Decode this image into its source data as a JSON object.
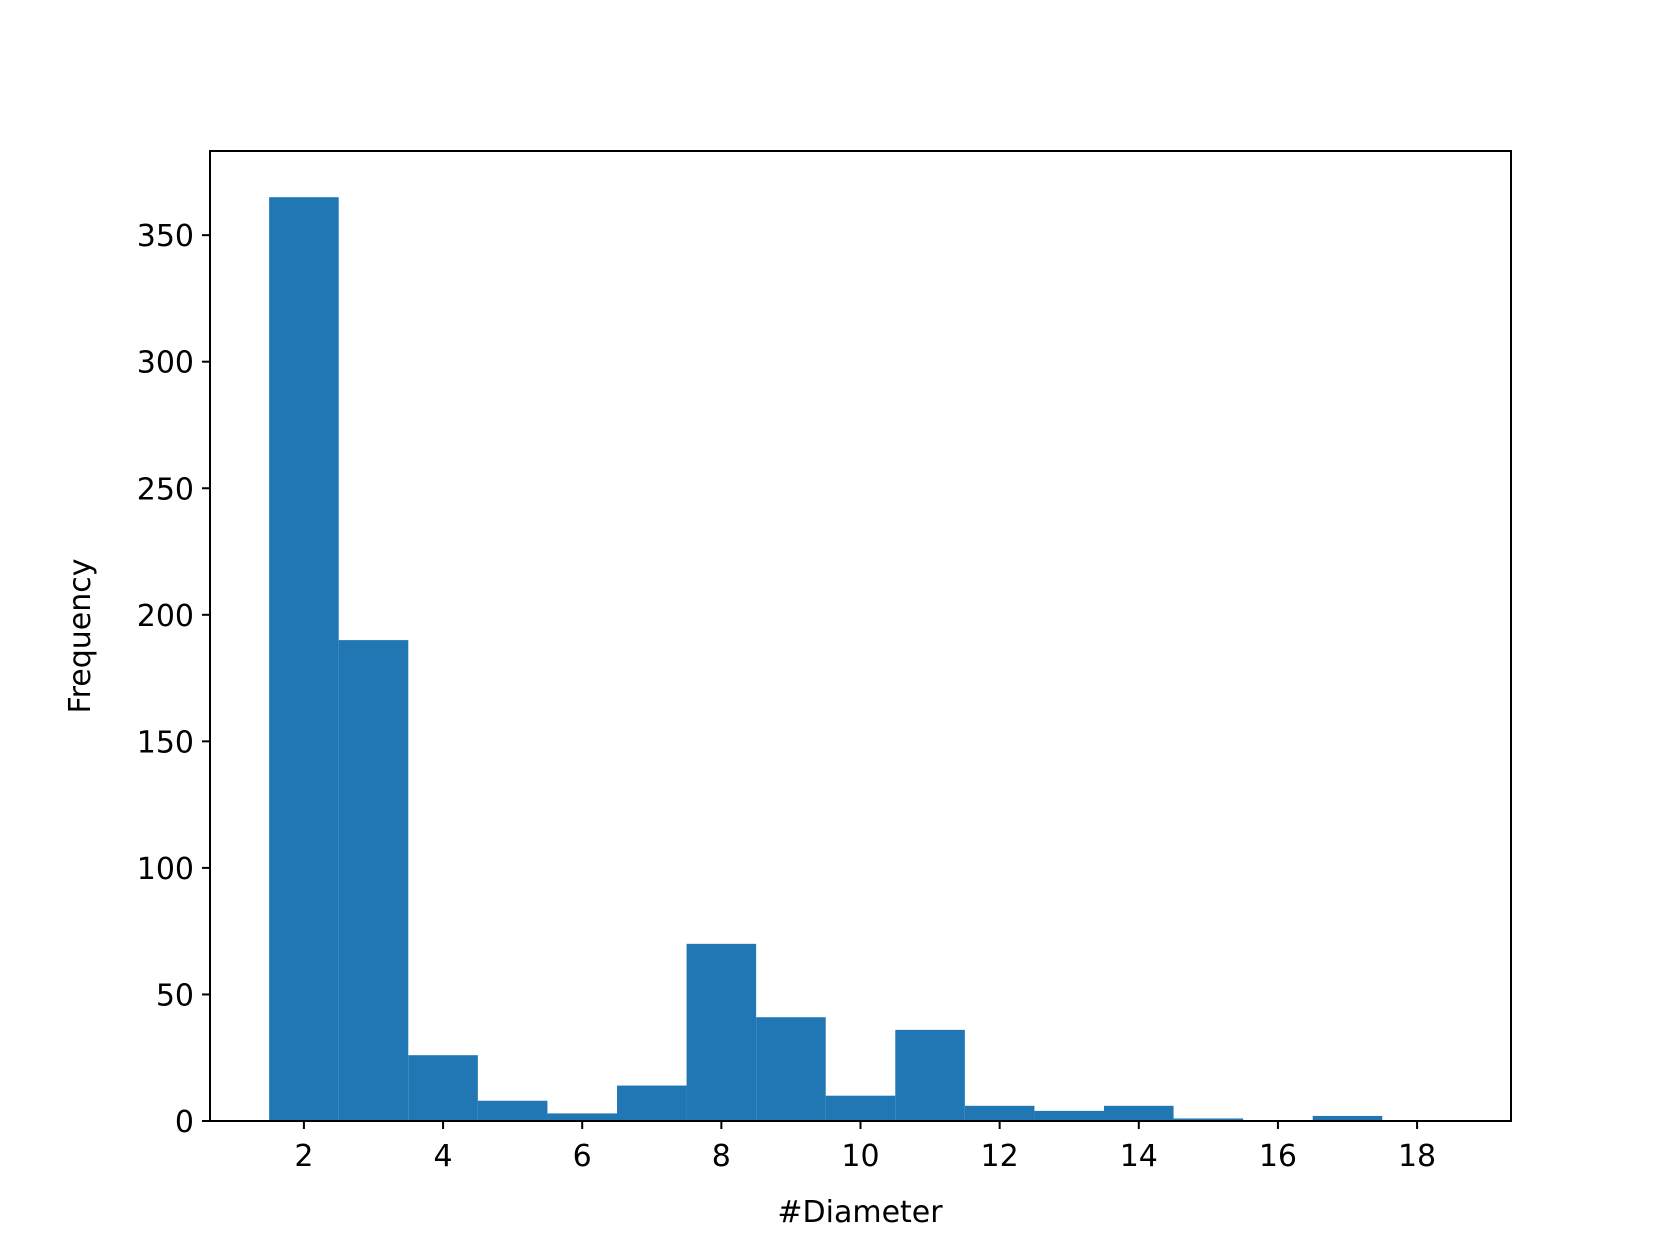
{
  "chart_data": {
    "type": "histogram",
    "x_label": "#Diameter",
    "y_label": "Frequency",
    "bins": [
      1.5,
      2.5,
      3.5,
      4.5,
      5.5,
      6.5,
      7.5,
      8.5,
      9.5,
      10.5,
      11.5,
      12.5,
      13.5,
      14.5,
      15.5,
      16.5,
      17.5,
      18.5
    ],
    "values": [
      365,
      190,
      26,
      8,
      3,
      14,
      70,
      41,
      10,
      36,
      6,
      4,
      6,
      1,
      0,
      2,
      0
    ],
    "color": "#2077b4",
    "xlim": [
      0.65,
      19.35
    ],
    "xticks": [
      2,
      4,
      6,
      8,
      10,
      12,
      14,
      16,
      18
    ],
    "ylim": [
      0,
      383.25
    ],
    "yticks": [
      0,
      50,
      100,
      150,
      200,
      250,
      300,
      350
    ]
  }
}
